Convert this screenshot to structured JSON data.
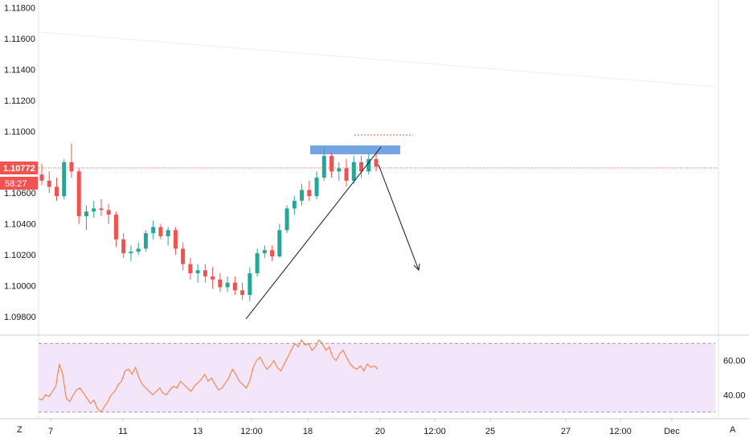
{
  "chart_data": [
    {
      "type": "candlestick",
      "panel": "price",
      "y_ticks": [
        "1.09800",
        "1.10000",
        "1.10200",
        "1.10400",
        "1.10600",
        "1.10772",
        "1.11000",
        "1.11200",
        "1.11400",
        "1.11600",
        "1.11800"
      ],
      "ylim": [
        1.0968,
        1.1185
      ],
      "last_price": "1.10772",
      "countdown": "58:27",
      "candles": [
        [
          0,
          1.1072,
          1.1079,
          1.1065,
          1.1068
        ],
        [
          1,
          1.1068,
          1.1074,
          1.106,
          1.1064
        ],
        [
          2,
          1.1064,
          1.107,
          1.1055,
          1.1058
        ],
        [
          3,
          1.1058,
          1.1082,
          1.1056,
          1.108
        ],
        [
          4,
          1.108,
          1.1092,
          1.107,
          1.1074
        ],
        [
          5,
          1.1074,
          1.1076,
          1.104,
          1.1045
        ],
        [
          6,
          1.1045,
          1.1052,
          1.1036,
          1.1048
        ],
        [
          7,
          1.1048,
          1.1055,
          1.1044,
          1.105
        ],
        [
          8,
          1.105,
          1.1056,
          1.1045,
          1.1049
        ],
        [
          9,
          1.1049,
          1.1053,
          1.104,
          1.1046
        ],
        [
          10,
          1.1046,
          1.1048,
          1.1025,
          1.103
        ],
        [
          11,
          1.103,
          1.1034,
          1.1018,
          1.1021
        ],
        [
          12,
          1.1021,
          1.1026,
          1.1016,
          1.1022
        ],
        [
          13,
          1.1022,
          1.1028,
          1.102,
          1.1024
        ],
        [
          14,
          1.1024,
          1.1036,
          1.1022,
          1.1034
        ],
        [
          15,
          1.1034,
          1.1042,
          1.103,
          1.1038
        ],
        [
          16,
          1.1038,
          1.104,
          1.103,
          1.1032
        ],
        [
          17,
          1.1032,
          1.1038,
          1.1026,
          1.1036
        ],
        [
          18,
          1.1036,
          1.1038,
          1.102,
          1.1024
        ],
        [
          19,
          1.1024,
          1.1028,
          1.101,
          1.1014
        ],
        [
          20,
          1.1014,
          1.1018,
          1.1004,
          1.1008
        ],
        [
          21,
          1.1008,
          1.1014,
          1.1002,
          1.101
        ],
        [
          22,
          1.101,
          1.1014,
          1.1002,
          1.1006
        ],
        [
          23,
          1.1006,
          1.1012,
          1.0998,
          1.1004
        ],
        [
          24,
          1.1004,
          1.1008,
          1.0996,
          1.0999
        ],
        [
          25,
          1.0999,
          1.1006,
          1.0996,
          1.1002
        ],
        [
          26,
          1.1002,
          1.1006,
          1.0994,
          1.0997
        ],
        [
          27,
          1.0997,
          1.1002,
          1.0991,
          1.0994
        ],
        [
          28,
          1.0994,
          1.1012,
          1.099,
          1.1008
        ],
        [
          29,
          1.1008,
          1.1024,
          1.1006,
          1.1021
        ],
        [
          30,
          1.1021,
          1.1026,
          1.1018,
          1.1023
        ],
        [
          31,
          1.1023,
          1.1026,
          1.1016,
          1.1019
        ],
        [
          32,
          1.1019,
          1.104,
          1.1018,
          1.1036
        ],
        [
          33,
          1.1036,
          1.1052,
          1.1034,
          1.105
        ],
        [
          34,
          1.105,
          1.1058,
          1.1046,
          1.1055
        ],
        [
          35,
          1.1055,
          1.1066,
          1.1052,
          1.1062
        ],
        [
          36,
          1.1062,
          1.1068,
          1.1055,
          1.1058
        ],
        [
          37,
          1.1058,
          1.1074,
          1.1056,
          1.107
        ],
        [
          38,
          1.107,
          1.109,
          1.1068,
          1.1084
        ],
        [
          39,
          1.1084,
          1.1086,
          1.107,
          1.1074
        ],
        [
          40,
          1.1074,
          1.108,
          1.1068,
          1.1076
        ],
        [
          41,
          1.1076,
          1.1082,
          1.1064,
          1.1068
        ],
        [
          42,
          1.1068,
          1.1084,
          1.1066,
          1.108
        ],
        [
          43,
          1.108,
          1.1084,
          1.107,
          1.1074
        ],
        [
          44,
          1.1074,
          1.1086,
          1.1072,
          1.1082
        ],
        [
          45,
          1.1082,
          1.1086,
          1.1074,
          1.1077
        ]
      ]
    },
    {
      "type": "line",
      "panel": "rsi",
      "y_ticks": [
        "60.00",
        "40.00"
      ],
      "ylim": [
        28,
        73
      ],
      "band": [
        30,
        70
      ],
      "values": [
        38,
        37,
        40,
        39,
        42,
        45,
        58,
        52,
        38,
        36,
        40,
        43,
        44,
        41,
        38,
        35,
        37,
        32,
        30,
        33,
        36,
        40,
        42,
        46,
        48,
        54,
        55,
        52,
        56,
        50,
        46,
        44,
        42,
        40,
        42,
        44,
        41,
        40,
        43,
        45,
        44,
        48,
        46,
        44,
        42,
        45,
        47,
        49,
        52,
        48,
        50,
        46,
        43,
        44,
        47,
        50,
        55,
        52,
        48,
        46,
        44,
        48,
        56,
        60,
        62,
        58,
        55,
        57,
        60,
        56,
        54,
        58,
        62,
        66,
        70,
        68,
        72,
        69,
        70,
        66,
        68,
        72,
        70,
        66,
        68,
        62,
        60,
        64,
        66,
        62,
        58,
        56,
        55,
        57,
        54,
        58,
        56,
        57,
        55
      ]
    }
  ],
  "time_axis": {
    "labels": [
      "7",
      "11",
      "13",
      "12:00",
      "18",
      "20",
      "12:00",
      "25",
      "27",
      "12:00",
      "Dec"
    ],
    "left_corner": "Z",
    "right_corner": "A"
  }
}
